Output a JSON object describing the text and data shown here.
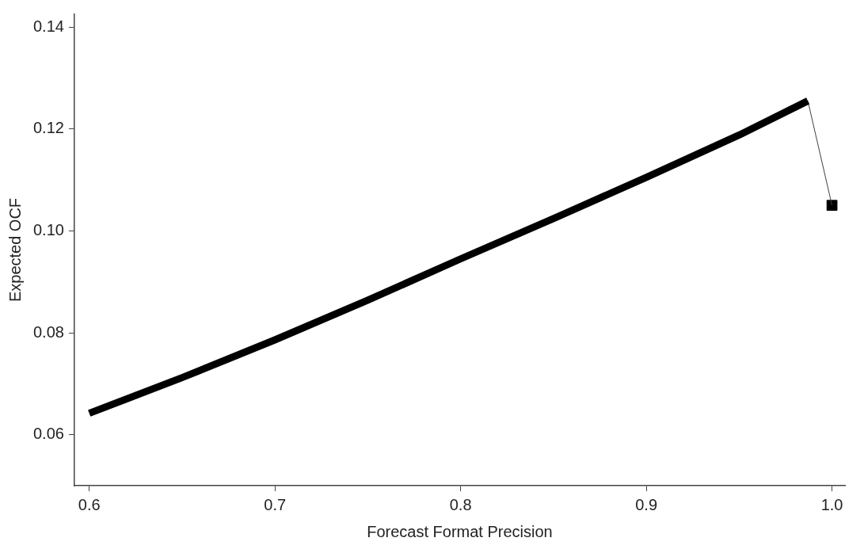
{
  "chart_data": {
    "type": "line",
    "xlabel": "Forecast Format Precision",
    "ylabel": "Expected OCF",
    "xlim": [
      0.592,
      1.007
    ],
    "ylim": [
      0.05,
      0.1425
    ],
    "xticks": [
      0.6,
      0.7,
      0.8,
      0.9,
      {
        "value": 1,
        "label": "1.0"
      }
    ],
    "yticks": [
      0.06,
      0.08,
      {
        "value": 0.1,
        "label": "0.10"
      },
      0.12,
      0.14
    ],
    "grid": false,
    "legend": false,
    "series": [
      {
        "color": "#000000",
        "marker": "none",
        "x": [
          0.6,
          0.65,
          0.7,
          0.75,
          0.8,
          0.85,
          0.9,
          0.95,
          0.987
        ],
        "values": [
          0.0642,
          0.0712,
          0.0786,
          0.0864,
          0.0945,
          0.1024,
          0.1105,
          0.1188,
          0.1255
        ]
      },
      {
        "color": "#404040",
        "marker": "none",
        "x": [
          0.987,
          1
        ],
        "values": [
          0.1255,
          0.105
        ]
      },
      {
        "type": "scatter",
        "color": "#000000",
        "marker": "square",
        "x": [
          1
        ],
        "values": [
          0.105
        ]
      }
    ]
  }
}
